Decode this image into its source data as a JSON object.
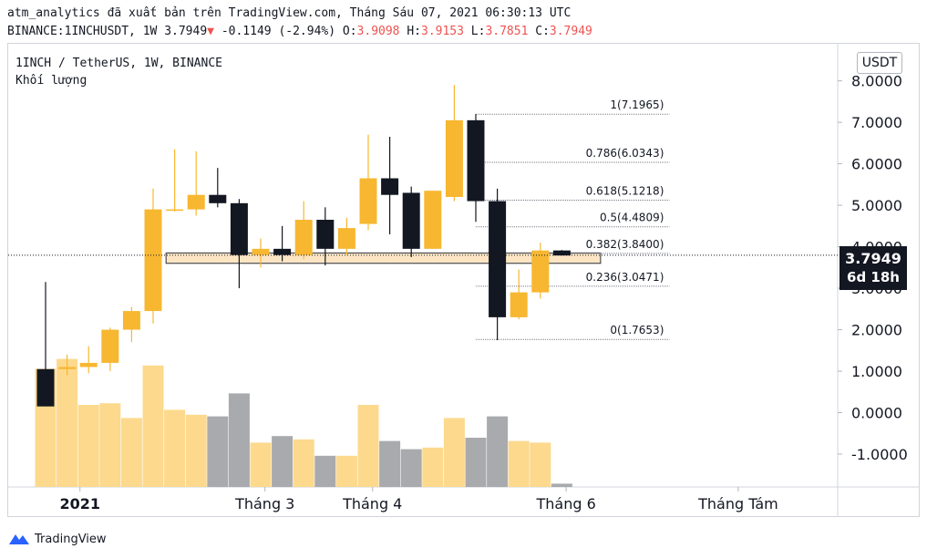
{
  "header": {
    "publish_line": "atm_analytics đã xuất bản trên TradingView.com, Tháng Sáu 07, 2021 06:30:13 UTC",
    "symbol": "BINANCE:1INCHUSDT, 1W",
    "last": "3.7949",
    "change": "-0.1149 (-2.94%)",
    "o_label": "O:",
    "o_value": "3.9098",
    "h_label": "H:",
    "h_value": "3.9153",
    "l_label": "L:",
    "l_value": "3.7851",
    "c_label": "C:",
    "c_value": "3.7949"
  },
  "legend": {
    "title": "1INCH / TetherUS, 1W, BINANCE",
    "volume_label": "Khối lượng"
  },
  "currency_button": "USDT",
  "price_tag": {
    "price": "3.7949",
    "countdown": "6d 18h"
  },
  "footer": {
    "brand": "TradingView"
  },
  "colors": {
    "up": "#f7b731",
    "down": "#131722",
    "vol_up": "#fcd98d",
    "vol_down": "#a9aaad",
    "zone_fill": "#fde2bd",
    "zone_stroke": "#2a2e39",
    "fib": "#787b86"
  },
  "chart_data": {
    "type": "candlestick",
    "y_axis": {
      "range": [
        -1.55,
        8.3
      ],
      "ticks": [
        8,
        7,
        6,
        5,
        4,
        3,
        2,
        1,
        0,
        -1
      ],
      "tick_labels": [
        "8.0000",
        "7.0000",
        "6.0000",
        "5.0000",
        "4.0000",
        "3.0000",
        "2.0000",
        "1.0000",
        "0.0000",
        "-1.0000"
      ]
    },
    "x_axis": {
      "labels": [
        {
          "text": "2021",
          "index": 1.6,
          "bold": true
        },
        {
          "text": "Tháng 3",
          "index": 10.2,
          "bold": false
        },
        {
          "text": "Tháng 4",
          "index": 15.2,
          "bold": false
        },
        {
          "text": "Tháng 6",
          "index": 24.2,
          "bold": false
        },
        {
          "text": "Tháng Tám",
          "index": 32.2,
          "bold": false
        }
      ]
    },
    "candles": [
      {
        "o": 1.05,
        "h": 3.15,
        "l": 0.15,
        "c": 0.15
      },
      {
        "o": 1.05,
        "h": 1.4,
        "l": 0.9,
        "c": 1.1
      },
      {
        "o": 1.1,
        "h": 1.6,
        "l": 0.95,
        "c": 1.2
      },
      {
        "o": 1.2,
        "h": 2.05,
        "l": 1.0,
        "c": 2.0
      },
      {
        "o": 2.0,
        "h": 2.55,
        "l": 1.7,
        "c": 2.45
      },
      {
        "o": 2.45,
        "h": 5.4,
        "l": 2.15,
        "c": 4.9
      },
      {
        "o": 4.9,
        "h": 6.35,
        "l": 4.85,
        "c": 4.9
      },
      {
        "o": 4.9,
        "h": 6.3,
        "l": 4.75,
        "c": 5.25
      },
      {
        "o": 5.25,
        "h": 5.9,
        "l": 4.95,
        "c": 5.05
      },
      {
        "o": 5.05,
        "h": 5.15,
        "l": 3.0,
        "c": 3.8
      },
      {
        "o": 3.8,
        "h": 4.2,
        "l": 3.5,
        "c": 3.95
      },
      {
        "o": 3.95,
        "h": 4.5,
        "l": 3.65,
        "c": 3.8
      },
      {
        "o": 3.8,
        "h": 5.1,
        "l": 3.7,
        "c": 4.65
      },
      {
        "o": 4.65,
        "h": 4.95,
        "l": 3.55,
        "c": 3.95
      },
      {
        "o": 3.95,
        "h": 4.7,
        "l": 3.8,
        "c": 4.45
      },
      {
        "o": 4.55,
        "h": 6.7,
        "l": 4.4,
        "c": 5.65
      },
      {
        "o": 5.65,
        "h": 6.65,
        "l": 4.3,
        "c": 5.25
      },
      {
        "o": 5.3,
        "h": 5.45,
        "l": 3.75,
        "c": 3.95
      },
      {
        "o": 3.95,
        "h": 5.35,
        "l": 3.95,
        "c": 5.35
      },
      {
        "o": 5.2,
        "h": 7.9,
        "l": 5.1,
        "c": 7.05
      },
      {
        "o": 7.05,
        "h": 7.2,
        "l": 4.6,
        "c": 5.1
      },
      {
        "o": 5.1,
        "h": 5.4,
        "l": 1.75,
        "c": 2.3
      },
      {
        "o": 2.3,
        "h": 3.45,
        "l": 2.25,
        "c": 2.9
      },
      {
        "o": 2.9,
        "h": 4.1,
        "l": 2.75,
        "c": 3.91
      },
      {
        "o": 3.91,
        "h": 3.92,
        "l": 3.79,
        "c": 3.79
      }
    ],
    "volume": {
      "note": "relative bar heights, fraction of pane height",
      "values": [
        0.72,
        0.78,
        0.5,
        0.51,
        0.42,
        0.74,
        0.47,
        0.44,
        0.43,
        0.57,
        0.27,
        0.31,
        0.29,
        0.19,
        0.19,
        0.5,
        0.28,
        0.23,
        0.24,
        0.42,
        0.3,
        0.43,
        0.28,
        0.27,
        0.02
      ],
      "direction": [
        "up",
        "up",
        "up",
        "up",
        "up",
        "up",
        "up",
        "up",
        "down",
        "down",
        "up",
        "down",
        "up",
        "down",
        "up",
        "up",
        "down",
        "down",
        "up",
        "up",
        "down",
        "down",
        "up",
        "up",
        "down"
      ]
    },
    "zone": {
      "from_index": 5.6,
      "to_index": 25.8,
      "low": 3.6,
      "high": 3.85
    },
    "current_price": 3.7949,
    "fib_levels": [
      {
        "label": "1(7.1965)",
        "value": 7.1965
      },
      {
        "label": "0.786(6.0343)",
        "value": 6.0343
      },
      {
        "label": "0.618(5.1218)",
        "value": 5.1218
      },
      {
        "label": "0.5(4.4809)",
        "value": 4.4809
      },
      {
        "label": "0.382(3.8400)",
        "value": 3.84
      },
      {
        "label": "0.236(3.0471)",
        "value": 3.0471
      },
      {
        "label": "0(1.7653)",
        "value": 1.7653
      }
    ],
    "fib_from_index": 20.0,
    "fib_to_index": 29.0
  }
}
